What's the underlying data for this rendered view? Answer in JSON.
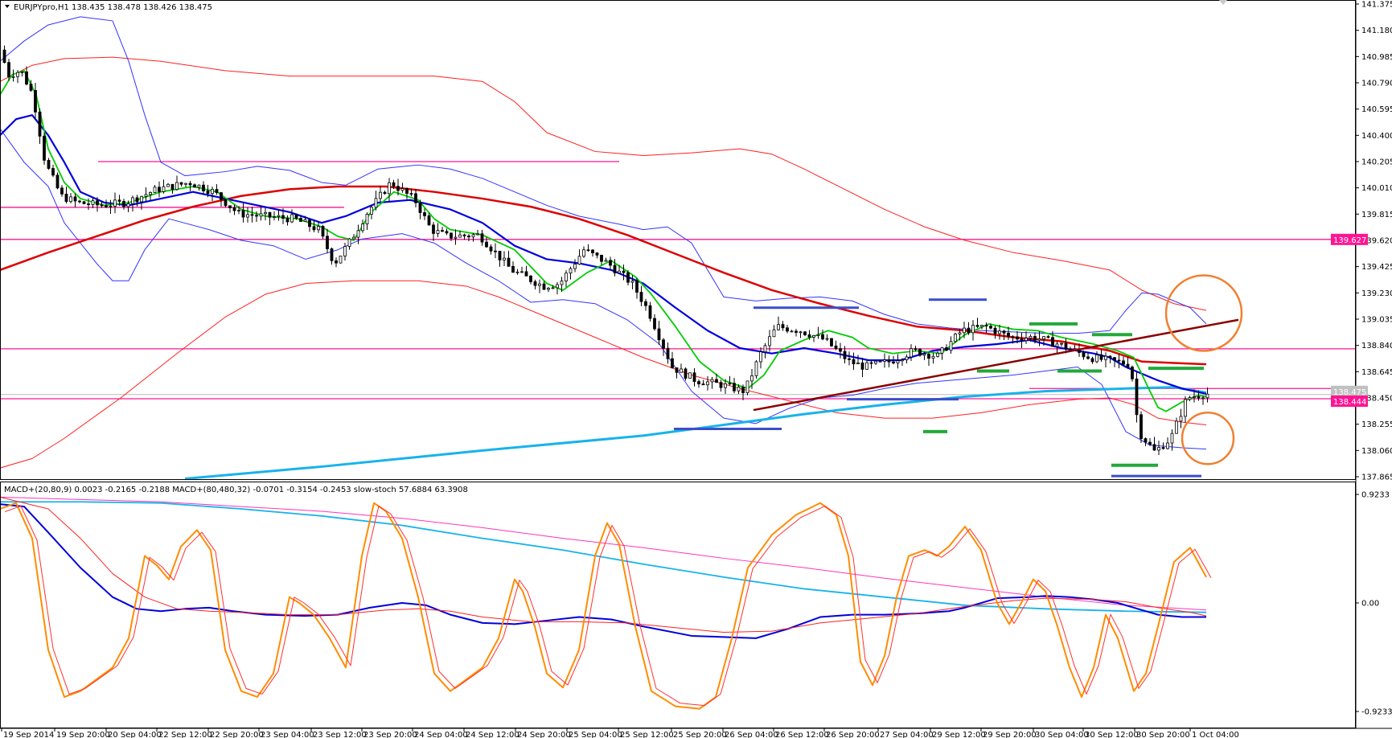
{
  "header": {
    "symbol_info": "EURJPYpro,H1  138.435 138.478 138.426 138.475",
    "indicator_info": "MACD+(20,80,9) 0.0023 -0.2165 -0.2188  MACD+(80,480,32) -0.0701 -0.3154 -0.2453  slow-stoch 57.6884 63.3908"
  },
  "colors": {
    "background": "#ffffff",
    "bull_candle": "#ffffff",
    "bear_candle": "#000000",
    "ema_green": "#00cc00",
    "ema_blue": "#0000dd",
    "ema_red": "#dd0000",
    "band_blue": "#3333ff",
    "band_red": "#ff2020",
    "long_ma_cyan": "#17b3ea",
    "hline_magenta": "#ff1493",
    "trendline_maroon": "#8b0000",
    "marker_blue": "#3b4ec8",
    "marker_green": "#22a83a",
    "circle_orange": "#f08030",
    "stoch": "#ff8c00",
    "stoch_signal": "#ff3030",
    "macd_fast": "#0000dd",
    "macd_fast_signal": "#ff2020",
    "macd_slow": "#17b3ea",
    "macd_slow_signal": "#ff33bb",
    "price_badge": "#ff1493"
  },
  "chart_data": [
    {
      "type": "candlestick",
      "symbol": "EURJPYpro",
      "timeframe": "H1",
      "ylim": [
        137.865,
        141.375
      ],
      "y_ticks": [
        "141.375",
        "141.180",
        "140.985",
        "140.790",
        "140.595",
        "140.400",
        "140.205",
        "140.010",
        "139.815",
        "139.620",
        "139.425",
        "139.230",
        "139.035",
        "138.840",
        "138.645",
        "138.450",
        "138.255",
        "138.060",
        "137.865"
      ],
      "x_ticks": [
        "19 Sep 2014",
        "19 Sep 20:00",
        "20 Sep 04:00",
        "22 Sep 12:00",
        "22 Sep 20:00",
        "23 Sep 04:00",
        "23 Sep 12:00",
        "23 Sep 20:00",
        "24 Sep 04:00",
        "24 Sep 12:00",
        "24 Sep 20:00",
        "25 Sep 04:00",
        "25 Sep 12:00",
        "25 Sep 20:00",
        "26 Sep 04:00",
        "26 Sep 12:00",
        "26 Sep 20:00",
        "27 Sep 04:00",
        "29 Sep 12:00",
        "29 Sep 20:00",
        "30 Sep 04:00",
        "30 Sep 12:00",
        "30 Sep 20:00",
        "1 Oct 04:00"
      ],
      "price_labels": [
        {
          "text": "139.627",
          "value": 139.627
        },
        {
          "text": "138.475",
          "value": 138.475
        },
        {
          "text": "138.444",
          "value": 138.444
        }
      ],
      "horizontal_lines": [
        140.205,
        139.865,
        139.627,
        138.815,
        138.444,
        138.52
      ],
      "current_price": 138.475
    },
    {
      "type": "line",
      "name": "MACD+ / slow-stoch",
      "ylim": [
        -0.9233,
        0.9233
      ],
      "y_ticks": [
        "0.9233",
        "0.00",
        "-0.9233"
      ]
    }
  ]
}
